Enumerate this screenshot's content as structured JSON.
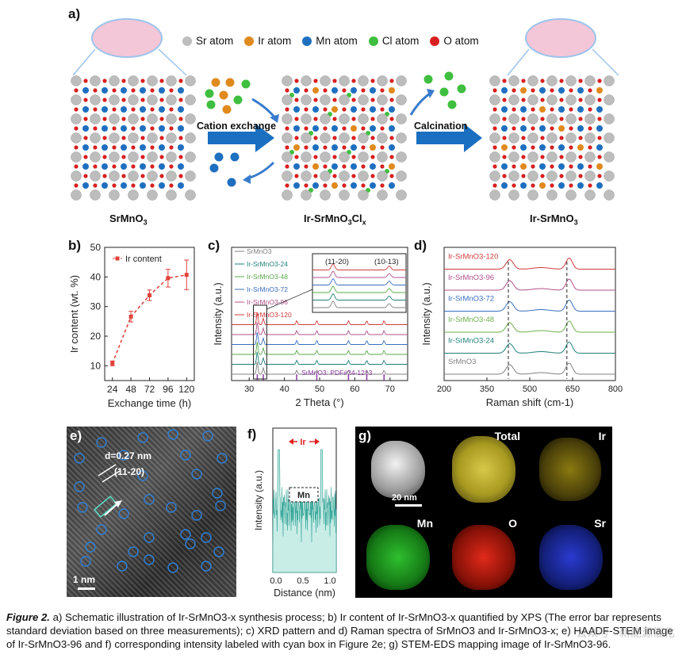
{
  "panel_a": {
    "label": "a)",
    "legend": [
      {
        "name": "Sr atom",
        "color": "#bdbdbd"
      },
      {
        "name": "Ir atom",
        "color": "#e08a1e"
      },
      {
        "name": "Mn atom",
        "color": "#1f6fc0"
      },
      {
        "name": "Cl atom",
        "color": "#3fbf3f"
      },
      {
        "name": "O atom",
        "color": "#d82020"
      }
    ],
    "step1": "Cation exchange",
    "step2": "Calcination",
    "structures": [
      "SrMnO3",
      "Ir-SrMnO3Clx",
      "Ir-SrMnO3"
    ]
  },
  "chart_data": [
    {
      "panel": "b)",
      "type": "line",
      "xlabel": "Exchange time (h)",
      "ylabel": "Ir content (wt. %)",
      "x": [
        24,
        48,
        72,
        96,
        120
      ],
      "series": [
        {
          "name": "Ir content",
          "values": [
            10.8,
            26.6,
            33.8,
            39.6,
            40.7
          ],
          "errors": [
            0.8,
            1.8,
            1.8,
            3.0,
            5.0
          ],
          "color": "#e0403a"
        }
      ],
      "xticks": [
        "24",
        "48",
        "72",
        "96",
        "120"
      ],
      "yticks": [
        "10",
        "20",
        "30",
        "40",
        "50"
      ],
      "ylim": [
        5,
        50
      ]
    },
    {
      "panel": "c)",
      "type": "line",
      "xlabel": "2 Theta (°)",
      "ylabel": "Intensity (a.u.)",
      "xticks": [
        "30",
        "40",
        "50",
        "60",
        "70"
      ],
      "xlim": [
        25,
        75
      ],
      "series": [
        {
          "name": "SrMnO3",
          "color": "#808080"
        },
        {
          "name": "Ir-SrMnO3-24",
          "color": "#1e7f7a"
        },
        {
          "name": "Ir-SrMnO3-48",
          "color": "#5aa84a"
        },
        {
          "name": "Ir-SrMnO3-72",
          "color": "#3a6ec0"
        },
        {
          "name": "Ir-SrMnO3-96",
          "color": "#b0508a"
        },
        {
          "name": "Ir-SrMnO3-120",
          "color": "#d03a3a"
        }
      ],
      "inset_labels": [
        "(11-20)",
        "(10-13)"
      ],
      "reference": "SrMnO3: PDF#24-1213"
    },
    {
      "panel": "d)",
      "type": "line",
      "xlabel": "Raman shift (cm-1)",
      "ylabel": "Intensity (a.u.)",
      "xticks": [
        "200",
        "350",
        "500",
        "650",
        "800"
      ],
      "xlim": [
        200,
        800
      ],
      "series": [
        {
          "name": "SrMnO3",
          "color": "#808080"
        },
        {
          "name": "Ir-SrMnO3-24",
          "color": "#1e7f7a"
        },
        {
          "name": "Ir-SrMnO3-48",
          "color": "#6ab04a"
        },
        {
          "name": "Ir-SrMnO3-72",
          "color": "#3a6ec0"
        },
        {
          "name": "Ir-SrMnO3-96",
          "color": "#b0508a"
        },
        {
          "name": "Ir-SrMnO3-120",
          "color": "#d03a3a"
        }
      ]
    },
    {
      "panel": "f)",
      "type": "line",
      "xlabel": "Distance (nm)",
      "ylabel": "Intensity (a.u.)",
      "xticks": [
        "0.0",
        "0.5",
        "1.0"
      ],
      "annotations": [
        "Ir",
        "Mn"
      ]
    }
  ],
  "panel_e": {
    "label": "e)",
    "d_spacing": "d=0.27 nm",
    "plane": "(11-20)",
    "scale": "1 nm"
  },
  "panel_g": {
    "label": "g)",
    "scale": "20 nm",
    "maps": [
      "Total",
      "Ir",
      "Mn",
      "O",
      "Sr"
    ]
  },
  "caption": {
    "figure": "Figure 2.",
    "text": "a) Schematic illustration of Ir-SrMnO3-x synthesis process; b) Ir content of Ir-SrMnO3-x quantified by XPS (The error bar represents standard deviation based on three measurements); c) XRD pattern and d) Raman spectra of SrMnO3 and Ir-SrMnO3-x; e) HAADF-STEM image of Ir-SrMnO3-96 and f) corresponding intensity labeled with cyan box in Figure 2e; g) STEM-EDS mapping image of Ir-SrMnO3-96."
  },
  "watermark": "公众号 · 新能源催化"
}
